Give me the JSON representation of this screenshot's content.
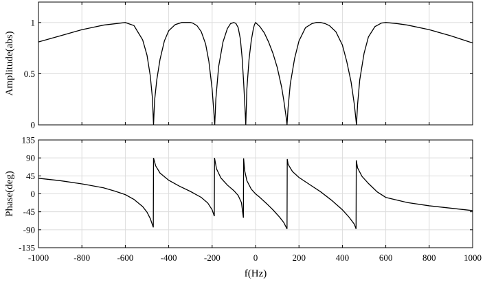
{
  "chart_data": [
    {
      "type": "line",
      "title": "",
      "xlabel": "",
      "ylabel": "Amplitude(abs)",
      "xlim": [
        -1000,
        1000
      ],
      "ylim": [
        0,
        1.2
      ],
      "grid": true,
      "x_ticks": [
        -1000,
        -800,
        -600,
        -400,
        -200,
        0,
        200,
        400,
        600,
        800,
        1000
      ],
      "y_ticks": [
        0,
        0.5,
        1
      ],
      "y_tick_labels": [
        "0",
        "0.5",
        "1"
      ],
      "series": [
        {
          "color": "#000000",
          "x": [
            -1000,
            -900,
            -800,
            -700,
            -600,
            -560,
            -520,
            -500,
            -485,
            -475,
            -470,
            -465,
            -455,
            -440,
            -420,
            -400,
            -370,
            -340,
            -310,
            -300,
            -290,
            -270,
            -250,
            -230,
            -215,
            -200,
            -193,
            -188,
            -183,
            -170,
            -150,
            -130,
            -115,
            -100,
            -90,
            -80,
            -70,
            -62,
            -55,
            -50,
            -45,
            -40,
            -30,
            -20,
            -10,
            -5,
            0,
            5,
            20,
            40,
            60,
            80,
            100,
            120,
            130,
            140,
            145,
            150,
            160,
            180,
            200,
            230,
            260,
            280,
            300,
            320,
            340,
            370,
            400,
            420,
            440,
            455,
            460,
            465,
            470,
            480,
            500,
            520,
            550,
            580,
            600,
            650,
            700,
            800,
            900,
            1000
          ],
          "y": [
            0.81,
            0.87,
            0.93,
            0.975,
            1.0,
            0.97,
            0.83,
            0.68,
            0.48,
            0.26,
            0.0,
            0.24,
            0.44,
            0.64,
            0.82,
            0.92,
            0.98,
            1.0,
            1.0,
            1.0,
            0.995,
            0.97,
            0.91,
            0.79,
            0.62,
            0.35,
            0.15,
            0.0,
            0.25,
            0.57,
            0.81,
            0.94,
            0.99,
            1.0,
            0.99,
            0.95,
            0.84,
            0.66,
            0.42,
            0.22,
            0.0,
            0.35,
            0.64,
            0.82,
            0.94,
            0.98,
            1.0,
            0.99,
            0.96,
            0.9,
            0.81,
            0.7,
            0.56,
            0.37,
            0.24,
            0.09,
            0.0,
            0.17,
            0.4,
            0.65,
            0.82,
            0.95,
            0.99,
            1.0,
            1.0,
            0.99,
            0.97,
            0.91,
            0.78,
            0.62,
            0.42,
            0.2,
            0.1,
            0.0,
            0.2,
            0.44,
            0.7,
            0.86,
            0.96,
            0.995,
            1.0,
            0.99,
            0.975,
            0.93,
            0.87,
            0.8
          ]
        }
      ]
    },
    {
      "type": "line",
      "title": "",
      "xlabel": "f(Hz)",
      "ylabel": "Phase(deg)",
      "xlim": [
        -1000,
        1000
      ],
      "ylim": [
        -135,
        135
      ],
      "grid": true,
      "x_ticks": [
        -1000,
        -800,
        -600,
        -400,
        -200,
        0,
        200,
        400,
        600,
        800,
        1000
      ],
      "x_tick_labels": [
        "-1000",
        "-800",
        "-600",
        "-400",
        "-200",
        "0",
        "200",
        "400",
        "600",
        "800",
        "1000"
      ],
      "y_ticks": [
        -135,
        -90,
        -45,
        0,
        45,
        90,
        135
      ],
      "y_tick_labels": [
        "-135",
        "-90",
        "-45",
        "0",
        "45",
        "90",
        "135"
      ],
      "series": [
        {
          "color": "#000000",
          "x": [
            -1000,
            -900,
            -800,
            -700,
            -650,
            -600,
            -560,
            -520,
            -500,
            -485,
            -471,
            -470,
            -460,
            -440,
            -400,
            -350,
            -300,
            -250,
            -220,
            -200,
            -190,
            -189,
            -180,
            -160,
            -130,
            -100,
            -80,
            -65,
            -56,
            -55,
            -50,
            -40,
            -20,
            0,
            20,
            50,
            80,
            110,
            130,
            145,
            146,
            150,
            170,
            200,
            250,
            300,
            350,
            400,
            430,
            455,
            463,
            464,
            470,
            490,
            520,
            560,
            600,
            700,
            800,
            900,
            1000
          ],
          "y": [
            39,
            33,
            25,
            15,
            7,
            -2,
            -14,
            -32,
            -46,
            -62,
            -84,
            90,
            70,
            52,
            34,
            19,
            6,
            -9,
            -23,
            -40,
            -56,
            90,
            63,
            40,
            22,
            8,
            -4,
            -22,
            -60,
            89,
            58,
            33,
            12,
            0,
            -9,
            -24,
            -40,
            -58,
            -72,
            -88,
            87,
            74,
            56,
            41,
            23,
            5,
            -16,
            -40,
            -58,
            -76,
            -88,
            84,
            65,
            44,
            26,
            5,
            -9,
            -22,
            -30,
            -36,
            -42
          ]
        }
      ]
    }
  ]
}
